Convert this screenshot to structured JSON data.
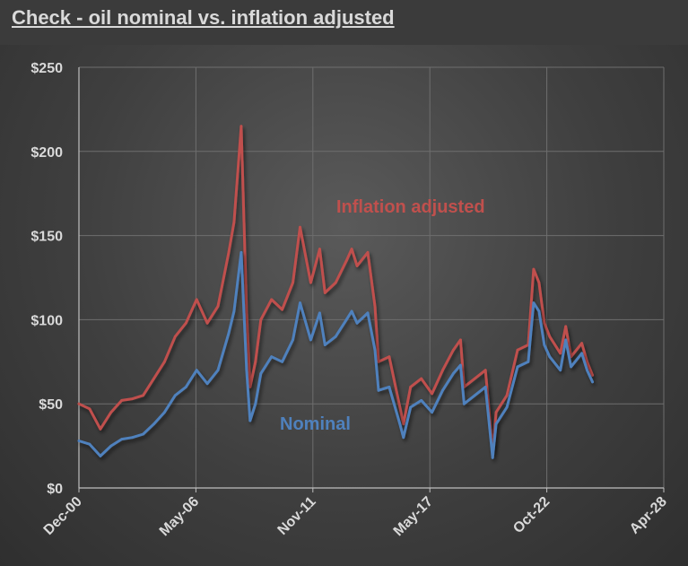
{
  "title": "Check - oil nominal vs. inflation adjusted",
  "colors": {
    "background": "#3f3f3f",
    "grid": "#6e6e6e",
    "axis": "#bfbfbf",
    "text": "#d9d9d9",
    "nominal": "#4f81bd",
    "inflation_adjusted": "#c0504d"
  },
  "chart_data": {
    "type": "line",
    "title": "Check - oil nominal vs. inflation adjusted",
    "xlabel": "",
    "ylabel": "",
    "ylim": [
      0,
      250
    ],
    "xlim": [
      "2000-12",
      "2028-04"
    ],
    "grid": true,
    "y_ticks": [
      "$0",
      "$50",
      "$100",
      "$150",
      "$200",
      "$250"
    ],
    "x_ticks": [
      "Dec-00",
      "May-06",
      "Nov-11",
      "May-17",
      "Oct-22",
      "Apr-28"
    ],
    "annotations": [
      {
        "text": "Inflation adjusted",
        "series": "inflation_adjusted"
      },
      {
        "text": "Nominal",
        "series": "nominal"
      }
    ],
    "x": [
      "2000-12",
      "2001-06",
      "2001-12",
      "2002-06",
      "2002-12",
      "2003-06",
      "2003-12",
      "2004-06",
      "2004-12",
      "2005-06",
      "2005-12",
      "2006-06",
      "2006-12",
      "2007-06",
      "2007-12",
      "2008-03",
      "2008-07",
      "2008-10",
      "2008-12",
      "2009-03",
      "2009-06",
      "2009-12",
      "2010-06",
      "2010-12",
      "2011-04",
      "2011-10",
      "2012-03",
      "2012-06",
      "2012-12",
      "2013-06",
      "2013-09",
      "2013-12",
      "2014-06",
      "2014-10",
      "2014-12",
      "2015-06",
      "2015-12",
      "2016-02",
      "2016-06",
      "2016-12",
      "2017-06",
      "2017-12",
      "2018-06",
      "2018-10",
      "2018-12",
      "2019-06",
      "2019-12",
      "2020-04",
      "2020-06",
      "2020-12",
      "2021-06",
      "2021-12",
      "2022-03",
      "2022-06",
      "2022-09",
      "2022-12",
      "2023-06",
      "2023-09",
      "2023-12",
      "2024-06",
      "2024-09",
      "2024-12"
    ],
    "series": [
      {
        "key": "nominal",
        "values": [
          28,
          26,
          19,
          25,
          29,
          30,
          32,
          38,
          45,
          55,
          60,
          70,
          62,
          70,
          92,
          105,
          140,
          70,
          40,
          50,
          68,
          78,
          75,
          88,
          110,
          88,
          104,
          85,
          90,
          100,
          105,
          98,
          104,
          82,
          58,
          60,
          38,
          30,
          48,
          52,
          45,
          58,
          68,
          73,
          50,
          55,
          60,
          18,
          38,
          48,
          72,
          75,
          110,
          105,
          85,
          78,
          70,
          88,
          72,
          80,
          70,
          63
        ]
      },
      {
        "key": "inflation_adjusted",
        "values": [
          50,
          47,
          35,
          45,
          52,
          53,
          55,
          65,
          75,
          90,
          98,
          112,
          98,
          108,
          140,
          158,
          215,
          105,
          60,
          75,
          100,
          112,
          106,
          122,
          155,
          122,
          142,
          116,
          122,
          135,
          142,
          132,
          140,
          108,
          75,
          78,
          48,
          38,
          60,
          65,
          56,
          70,
          82,
          88,
          60,
          65,
          70,
          22,
          45,
          55,
          82,
          85,
          130,
          122,
          98,
          90,
          80,
          96,
          78,
          86,
          75,
          67
        ]
      }
    ]
  }
}
